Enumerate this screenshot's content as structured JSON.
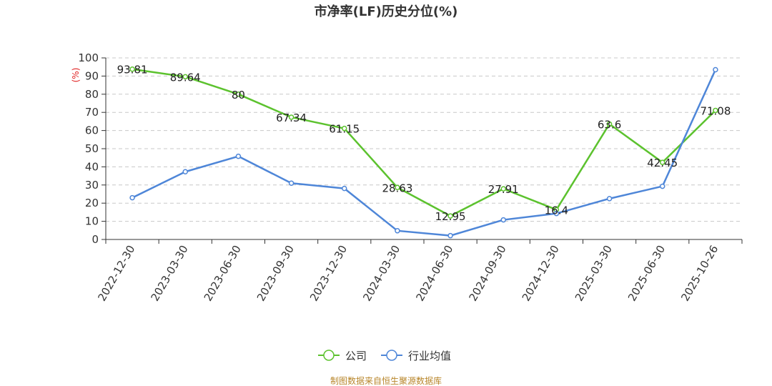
{
  "chart_data": {
    "type": "line",
    "title": "市净率(LF)历史分位(%)",
    "ylabel": "(%)",
    "ylim": [
      0,
      100
    ],
    "yticks": [
      0,
      10,
      20,
      30,
      40,
      50,
      60,
      70,
      80,
      90,
      100
    ],
    "categories": [
      "2022-12-30",
      "2023-03-30",
      "2023-06-30",
      "2023-09-30",
      "2023-12-30",
      "2024-03-30",
      "2024-06-30",
      "2024-09-30",
      "2024-12-30",
      "2025-03-30",
      "2025-06-30",
      "2025-10-26"
    ],
    "series": [
      {
        "name": "公司",
        "color": "#5cc22e",
        "values": [
          93.81,
          89.64,
          80,
          67.34,
          61.15,
          28.63,
          12.95,
          27.91,
          16.4,
          63.6,
          42.45,
          71.08
        ],
        "data_labels": [
          "93.81",
          "89.64",
          "80",
          "67.34",
          "61.15",
          "28.63",
          "12.95",
          "27.91",
          "16.4",
          "63.6",
          "42.45",
          "71.08"
        ]
      },
      {
        "name": "行业均值",
        "color": "#4e86d8",
        "values": [
          23,
          37.3,
          45.8,
          31,
          28.1,
          4.8,
          2.1,
          10.8,
          14.3,
          22.5,
          29.3,
          93.5
        ]
      }
    ],
    "grid": true,
    "legend_position": "bottom-center",
    "source": "制图数据来自恒生聚源数据库"
  }
}
